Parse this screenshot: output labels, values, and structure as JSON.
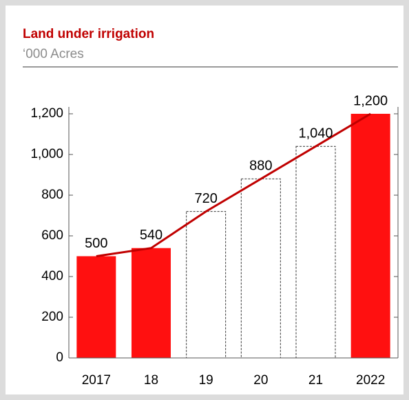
{
  "chart_data": {
    "type": "bar",
    "title": "Land under irrigation",
    "subtitle": "‘000 Acres",
    "categories": [
      "2017",
      "18",
      "19",
      "20",
      "21",
      "2022"
    ],
    "values": [
      500,
      540,
      720,
      880,
      1040,
      1200
    ],
    "value_labels": [
      "500",
      "540",
      "720",
      "880",
      "1,040",
      "1,200"
    ],
    "projected": [
      false,
      false,
      true,
      true,
      true,
      false
    ],
    "color": "#ff1010",
    "trend_line_color": "#c00000",
    "ylim": [
      0,
      1200
    ],
    "yticks": [
      0,
      200,
      400,
      600,
      800,
      {
        "value": 1000,
        "label": "1,000"
      },
      {
        "value": 1200,
        "label": "1,200"
      }
    ]
  }
}
